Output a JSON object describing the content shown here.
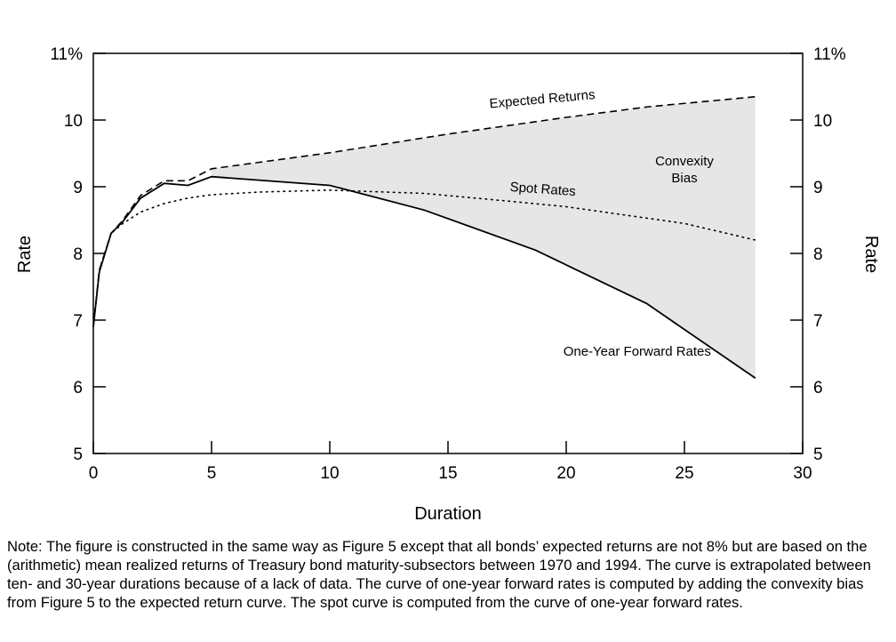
{
  "chart_data": {
    "type": "area",
    "xlabel": "Duration",
    "ylabel": "Rate",
    "ylabel_right": "Rate",
    "xlim": [
      0,
      30
    ],
    "ylim": [
      5,
      11
    ],
    "xticks": [
      "0",
      "5",
      "10",
      "15",
      "20",
      "25",
      "30"
    ],
    "yticks": [
      "5",
      "6",
      "7",
      "8",
      "9",
      "10",
      "11%"
    ],
    "grid": false,
    "shaded_region": {
      "label": "Convexity Bias",
      "between": [
        "Expected Returns",
        "One-Year Forward Rates"
      ],
      "color": "#e6e6e6"
    },
    "series": [
      {
        "name": "Expected Returns",
        "style": "dashed",
        "x": [
          0,
          0.25,
          0.75,
          1.25,
          2,
          3,
          4,
          5,
          10,
          15,
          20,
          23.5,
          28
        ],
        "y": [
          6.9,
          7.75,
          8.3,
          8.5,
          8.87,
          9.09,
          9.09,
          9.27,
          9.51,
          9.79,
          10.04,
          10.2,
          10.35
        ]
      },
      {
        "name": "Spot Rates",
        "style": "dotted",
        "x": [
          0,
          0.25,
          0.75,
          1.25,
          2,
          3,
          4,
          5,
          7,
          10,
          14,
          18,
          20,
          25,
          28
        ],
        "y": [
          6.9,
          7.75,
          8.3,
          8.45,
          8.62,
          8.75,
          8.83,
          8.88,
          8.92,
          8.95,
          8.9,
          8.77,
          8.7,
          8.45,
          8.2
        ]
      },
      {
        "name": "One-Year Forward Rates",
        "style": "solid",
        "x": [
          0,
          0.25,
          0.75,
          1.25,
          2,
          3,
          4,
          5,
          10,
          14,
          18.7,
          23.4,
          28
        ],
        "y": [
          6.9,
          7.72,
          8.3,
          8.48,
          8.83,
          9.05,
          9.02,
          9.15,
          9.02,
          8.65,
          8.05,
          7.25,
          6.13
        ]
      }
    ],
    "annotations": [
      {
        "text": "Expected Returns",
        "x": 19,
        "y": 10.25,
        "rotate": -5
      },
      {
        "text": "Convexity",
        "x": 25,
        "y": 9.32
      },
      {
        "text": "Bias",
        "x": 25,
        "y": 9.07
      },
      {
        "text": "Spot Rates",
        "x": 19,
        "y": 8.9,
        "rotate": 4
      },
      {
        "text": "One-Year Forward Rates",
        "x": 23,
        "y": 6.47
      }
    ]
  },
  "note": "Note: The figure is constructed in the same way as Figure 5 except that all bonds’ expected returns are not 8% but are based on the (arithmetic) mean realized returns of Treasury bond maturity-subsectors between 1970 and 1994. The curve is extrapolated between ten- and 30-year durations because of a lack of data. The curve of one-year forward rates is computed by adding the convexity bias from Figure 5 to the expected return curve. The spot curve is computed from the curve of one-year forward rates."
}
